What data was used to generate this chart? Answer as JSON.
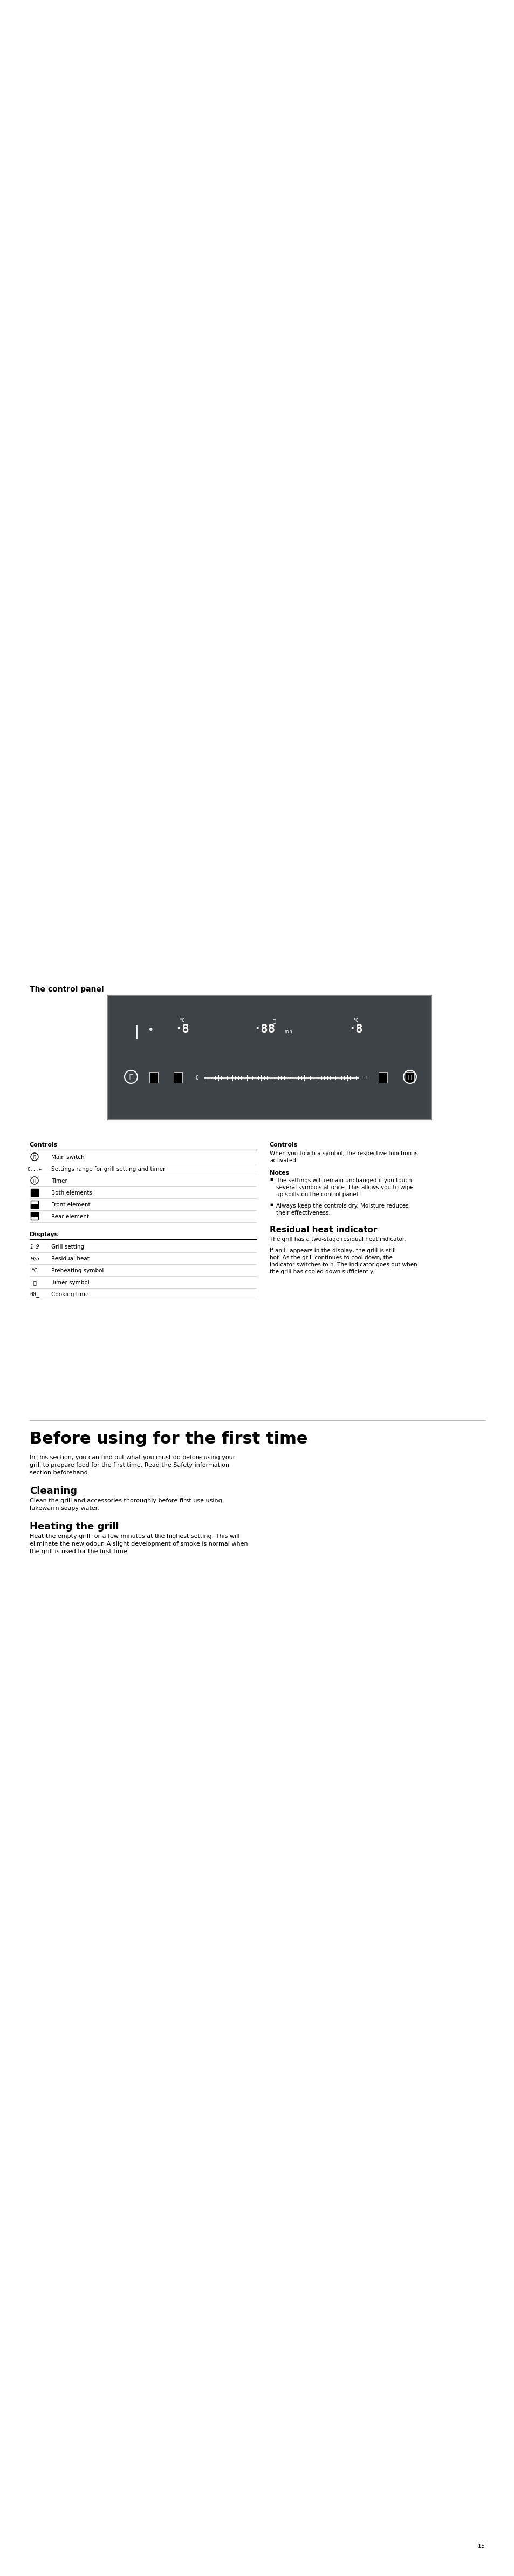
{
  "page_bg": "#ffffff",
  "panel_bg": "#3d4347",
  "panel_border": "#555555",
  "title_control_panel": "The control panel",
  "section_before": "Before using for the first time",
  "section_cleaning": "Cleaning",
  "section_heating": "Heating the grill",
  "controls_heading": "Controls",
  "controls_right_heading": "Controls",
  "notes_heading": "Notes",
  "residual_heading": "Residual heat indicator",
  "displays_heading": "Displays",
  "controls_rows": [
    [
      "circle_power",
      "Main switch"
    ],
    [
      "0...+",
      "Settings range for grill setting and timer"
    ],
    [
      "clock",
      "Timer"
    ],
    [
      "sq_full",
      "Both elements"
    ],
    [
      "sq_top",
      "Front element"
    ],
    [
      "sq_bot",
      "Rear element"
    ]
  ],
  "displays_rows": [
    [
      "1-9",
      "Grill setting"
    ],
    [
      "H/h",
      "Residual heat"
    ],
    [
      "°C",
      "Preheating symbol"
    ],
    [
      "bell",
      "Timer symbol"
    ],
    [
      "00",
      "Cooking time"
    ]
  ],
  "controls_right_text": "When you touch a symbol, the respective function is activated.",
  "notes_bullets": [
    "The settings will remain unchanged if you touch several symbols at once. This allows you to wipe up spills on the control panel.",
    "Always keep the controls dry. Moisture reduces their effectiveness."
  ],
  "residual_para1": "The grill has a two-stage residual heat indicator.",
  "residual_para2": "If an H appears in the display, the grill is still hot. As the grill continues to cool down, the indicator switches to h. The indicator goes out when the grill has cooled down sufficiently.",
  "before_para": "In this section, you can find out what you must do before using your grill to prepare food for the first time. Read the Safety information section beforehand.",
  "cleaning_para": "Clean the grill and accessories thoroughly before first use using lukewarm soapy water.",
  "heating_para": "Heat the empty grill for a few minutes at the highest setting. This will eliminate the new odour. A slight development of smoke is normal when the grill is used for the first time.",
  "page_number": "15"
}
